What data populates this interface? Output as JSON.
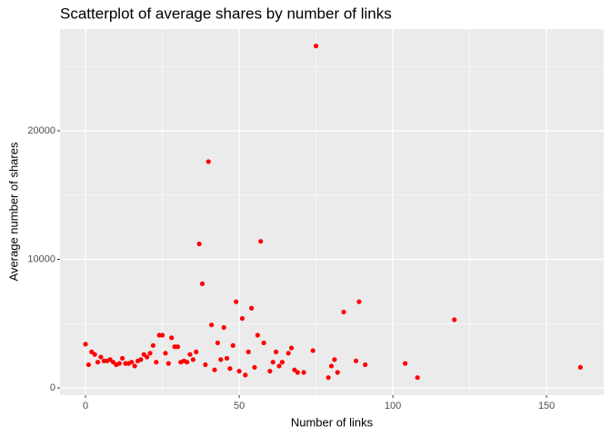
{
  "chart_data": {
    "type": "scatter",
    "title": "Scatterplot of average shares by number of links",
    "x_label": "Number of links",
    "y_label": "Average number of shares",
    "color": "#ff0000",
    "x": [
      0,
      1,
      2,
      3,
      4,
      5,
      6,
      7,
      8,
      9,
      10,
      11,
      12,
      13,
      14,
      15,
      16,
      17,
      18,
      19,
      20,
      21,
      22,
      23,
      24,
      25,
      26,
      27,
      28,
      29,
      30,
      31,
      32,
      33,
      34,
      35,
      36,
      37,
      38,
      39,
      40,
      41,
      42,
      43,
      44,
      45,
      46,
      47,
      48,
      49,
      50,
      51,
      52,
      53,
      54,
      55,
      56,
      57,
      58,
      60,
      61,
      62,
      63,
      64,
      66,
      67,
      68,
      69,
      71,
      74,
      75,
      79,
      80,
      81,
      82,
      84,
      88,
      89,
      91,
      104,
      108,
      120,
      161
    ],
    "values": [
      3400,
      1800,
      2800,
      2600,
      2000,
      2400,
      2100,
      2100,
      2200,
      2000,
      1800,
      1900,
      2300,
      1900,
      1900,
      2000,
      1700,
      2100,
      2200,
      2600,
      2400,
      2700,
      3300,
      2000,
      4100,
      4100,
      2700,
      1900,
      3900,
      3200,
      3200,
      2000,
      2100,
      2000,
      2600,
      2200,
      2800,
      11200,
      8100,
      1800,
      17600,
      4900,
      1400,
      3500,
      2200,
      4700,
      2300,
      1500,
      3300,
      6700,
      1300,
      5400,
      1000,
      2800,
      6200,
      1600,
      4100,
      11400,
      3500,
      1300,
      2000,
      2800,
      1700,
      2000,
      2700,
      3100,
      1400,
      1200,
      1200,
      2900,
      26600,
      800,
      1700,
      2200,
      1200,
      5900,
      2100,
      6700,
      1800,
      1900,
      800,
      5300,
      1600
    ],
    "xlim": [
      -8.3,
      168.6
    ],
    "ylim": [
      -565,
      27915
    ],
    "xticks": [
      0,
      50,
      100,
      150
    ],
    "yticks": [
      0,
      10000,
      20000
    ],
    "x_minor_ticks": [
      25,
      75,
      125
    ],
    "y_minor_ticks": [
      5000,
      15000,
      25000
    ],
    "grid": true
  }
}
